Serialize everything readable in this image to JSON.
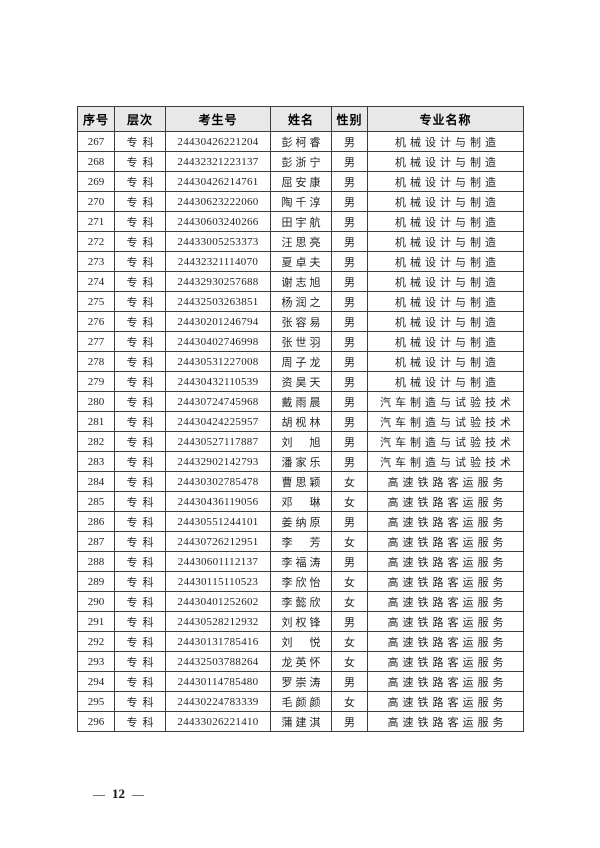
{
  "table": {
    "headers": [
      "序号",
      "层次",
      "考生号",
      "姓名",
      "性别",
      "专业名称"
    ],
    "rows": [
      [
        "267",
        "专科",
        "24430426221204",
        "彭柯睿",
        "男",
        "机械设计与制造"
      ],
      [
        "268",
        "专科",
        "24432321223137",
        "彭浙宁",
        "男",
        "机械设计与制造"
      ],
      [
        "269",
        "专科",
        "24430426214761",
        "屈安康",
        "男",
        "机械设计与制造"
      ],
      [
        "270",
        "专科",
        "24430623222060",
        "陶千淳",
        "男",
        "机械设计与制造"
      ],
      [
        "271",
        "专科",
        "24430603240266",
        "田宇航",
        "男",
        "机械设计与制造"
      ],
      [
        "272",
        "专科",
        "24433005253373",
        "汪思亮",
        "男",
        "机械设计与制造"
      ],
      [
        "273",
        "专科",
        "24432321114070",
        "夏卓夫",
        "男",
        "机械设计与制造"
      ],
      [
        "274",
        "专科",
        "24432930257688",
        "谢志旭",
        "男",
        "机械设计与制造"
      ],
      [
        "275",
        "专科",
        "24432503263851",
        "杨润之",
        "男",
        "机械设计与制造"
      ],
      [
        "276",
        "专科",
        "24430201246794",
        "张容易",
        "男",
        "机械设计与制造"
      ],
      [
        "277",
        "专科",
        "24430402746998",
        "张世羽",
        "男",
        "机械设计与制造"
      ],
      [
        "278",
        "专科",
        "24430531227008",
        "周子龙",
        "男",
        "机械设计与制造"
      ],
      [
        "279",
        "专科",
        "24430432110539",
        "资昊天",
        "男",
        "机械设计与制造"
      ],
      [
        "280",
        "专科",
        "24430724745968",
        "戴雨晨",
        "男",
        "汽车制造与试验技术"
      ],
      [
        "281",
        "专科",
        "24430424225957",
        "胡枧林",
        "男",
        "汽车制造与试验技术"
      ],
      [
        "282",
        "专科",
        "24430527117887",
        "刘　旭",
        "男",
        "汽车制造与试验技术"
      ],
      [
        "283",
        "专科",
        "24432902142793",
        "潘家乐",
        "男",
        "汽车制造与试验技术"
      ],
      [
        "284",
        "专科",
        "24430302785478",
        "曹思颖",
        "女",
        "高速铁路客运服务"
      ],
      [
        "285",
        "专科",
        "24430436119056",
        "邓　琳",
        "女",
        "高速铁路客运服务"
      ],
      [
        "286",
        "专科",
        "24430551244101",
        "姜纳原",
        "男",
        "高速铁路客运服务"
      ],
      [
        "287",
        "专科",
        "24430726212951",
        "李　芳",
        "女",
        "高速铁路客运服务"
      ],
      [
        "288",
        "专科",
        "24430601112137",
        "李福涛",
        "男",
        "高速铁路客运服务"
      ],
      [
        "289",
        "专科",
        "24430115110523",
        "李欣怡",
        "女",
        "高速铁路客运服务"
      ],
      [
        "290",
        "专科",
        "24430401252602",
        "李懿欣",
        "女",
        "高速铁路客运服务"
      ],
      [
        "291",
        "专科",
        "24430528212932",
        "刘权锋",
        "男",
        "高速铁路客运服务"
      ],
      [
        "292",
        "专科",
        "24430131785416",
        "刘　悦",
        "女",
        "高速铁路客运服务"
      ],
      [
        "293",
        "专科",
        "24432503788264",
        "龙英怀",
        "女",
        "高速铁路客运服务"
      ],
      [
        "294",
        "专科",
        "24430114785480",
        "罗崇涛",
        "男",
        "高速铁路客运服务"
      ],
      [
        "295",
        "专科",
        "24430224783339",
        "毛颜颜",
        "女",
        "高速铁路客运服务"
      ],
      [
        "296",
        "专科",
        "24433026221410",
        "蒲建淇",
        "男",
        "高速铁路客运服务"
      ]
    ]
  },
  "footer": {
    "left_dash": "—",
    "page_number": "12",
    "right_dash": "—"
  },
  "colors": {
    "header_bg": "#e8e8e8",
    "border": "#3d3d3d",
    "text": "#222222"
  }
}
